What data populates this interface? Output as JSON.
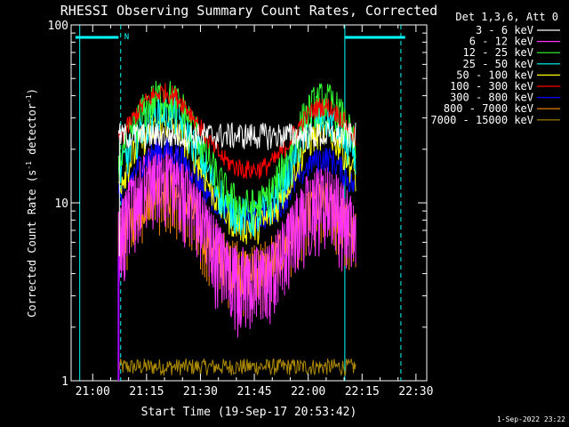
{
  "chart_data": {
    "type": "line",
    "title": "RHESSI Observing Summary Count Rates, Corrected",
    "xlabel": "Start Time (19-Sep-17 20:53:42)",
    "ylabel_main": "Corrected Count Rate (s",
    "ylabel_sup1": "-1",
    "ylabel_mid": " detector",
    "ylabel_sup2": "-1",
    "ylabel_end": ")",
    "y_scale": "log",
    "ylim": [
      1,
      100
    ],
    "xlim_minutes": [
      20.9,
      22.55
    ],
    "x_ticks": [
      {
        "value": 21.0,
        "label": "21:00"
      },
      {
        "value": 21.25,
        "label": "21:15"
      },
      {
        "value": 21.5,
        "label": "21:30"
      },
      {
        "value": 21.75,
        "label": "21:45"
      },
      {
        "value": 22.0,
        "label": "22:00"
      },
      {
        "value": 22.25,
        "label": "22:15"
      },
      {
        "value": 22.5,
        "label": "22:30"
      }
    ],
    "y_ticks": [
      {
        "value": 1,
        "label": "1"
      },
      {
        "value": 10,
        "label": "10"
      },
      {
        "value": 100,
        "label": "100"
      }
    ],
    "legend_header": "Det 1,3,6, Att 0",
    "legend_position": "top-right, outside plot",
    "data_span": [
      21.12,
      22.22
    ],
    "series": [
      {
        "name": "3 - 6 keV",
        "color": "#ffffff",
        "flat": 24,
        "peak1": 24,
        "peak2": 24,
        "noise": 0.08
      },
      {
        "name": "6 - 12 keV",
        "color": "#ff33ff",
        "flat": 3.5,
        "peak1": 15,
        "peak2": 11,
        "noise": 0.25
      },
      {
        "name": "12 - 25 keV",
        "color": "#33ff33",
        "flat": 9,
        "peak1": 40,
        "peak2": 38,
        "noise": 0.12
      },
      {
        "name": "25 - 50 keV",
        "color": "#00ffff",
        "flat": 8,
        "peak1": 33,
        "peak2": 30,
        "noise": 0.12
      },
      {
        "name": "50 - 100 keV",
        "color": "#ffff00",
        "flat": 7,
        "peak1": 28,
        "peak2": 25,
        "noise": 0.1
      },
      {
        "name": "100 - 300 keV",
        "color": "#ff0000",
        "flat": 15,
        "peak1": 42,
        "peak2": 35,
        "noise": 0.06
      },
      {
        "name": "300 - 800 keV",
        "color": "#0000ff",
        "flat": 8,
        "peak1": 20,
        "peak2": 18,
        "noise": 0.08
      },
      {
        "name": "800 - 7000 keV",
        "color": "#ff8800",
        "flat": 4,
        "peak1": 12,
        "peak2": 10,
        "noise": 0.14
      },
      {
        "name": "7000 - 15000 keV",
        "color": "#aa8800",
        "flat": 1.2,
        "peak1": 1.2,
        "peak2": 1.2,
        "noise": 0.05
      }
    ],
    "night_markers": [
      20.94,
      22.17
    ],
    "saa_markers": [
      21.13,
      22.43
    ],
    "night_bar_ranges": [
      [
        20.92,
        21.12
      ],
      [
        22.17,
        22.45
      ]
    ],
    "night_bar_label": "N"
  },
  "timestamp": "1-Sep-2022 23:22"
}
